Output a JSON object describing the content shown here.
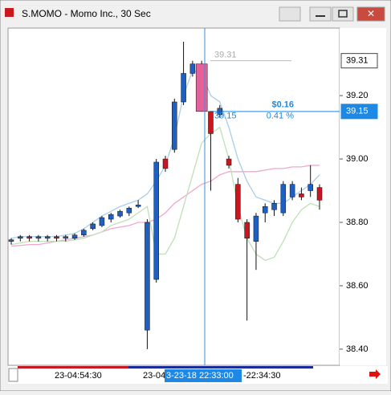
{
  "window_title": "S.MOMO - Momo Inc., 30 Sec",
  "chart_data": {
    "type": "candlestick",
    "up_color": "#1f5fbf",
    "down_color": "#c8171e",
    "highlight_color": "#e8609a",
    "open": [
      38.74,
      38.75,
      38.755,
      38.75,
      38.75,
      38.755,
      38.75,
      38.75,
      38.76,
      38.78,
      38.79,
      38.81,
      38.82,
      38.83,
      38.85,
      38.46,
      38.62,
      39.0,
      39.03,
      39.18,
      39.27,
      39.3,
      39.15,
      39.14,
      39.0,
      38.92,
      38.8,
      38.74,
      38.83,
      38.84,
      38.83,
      38.88,
      38.89,
      38.9,
      38.91
    ],
    "high": [
      38.75,
      38.76,
      38.76,
      38.76,
      38.76,
      38.76,
      38.76,
      38.765,
      38.78,
      38.8,
      38.82,
      38.83,
      38.84,
      38.85,
      38.87,
      38.81,
      39.0,
      39.01,
      39.19,
      39.37,
      39.31,
      39.31,
      39.15,
      39.17,
      39.01,
      38.94,
      38.81,
      38.83,
      38.86,
      38.87,
      38.93,
      38.93,
      38.91,
      38.98,
      38.92
    ],
    "low": [
      38.73,
      38.74,
      38.74,
      38.74,
      38.74,
      38.74,
      38.74,
      38.745,
      38.755,
      38.775,
      38.785,
      38.8,
      38.815,
      38.82,
      38.845,
      38.4,
      38.61,
      38.96,
      39.02,
      39.17,
      39.26,
      39.15,
      38.9,
      39.13,
      38.97,
      38.8,
      38.49,
      38.65,
      38.8,
      38.82,
      38.82,
      38.87,
      38.87,
      38.88,
      38.84
    ],
    "close": [
      38.745,
      38.755,
      38.75,
      38.755,
      38.755,
      38.75,
      38.755,
      38.76,
      38.775,
      38.795,
      38.815,
      38.825,
      38.835,
      38.845,
      38.855,
      38.8,
      38.99,
      38.97,
      39.18,
      39.27,
      39.3,
      39.15,
      39.08,
      39.16,
      38.98,
      38.81,
      38.75,
      38.82,
      38.85,
      38.86,
      38.92,
      38.92,
      38.88,
      38.92,
      38.87
    ],
    "lines": [
      {
        "color": "#f2a6cf",
        "values": [
          38.725,
          38.727,
          38.73,
          38.73,
          38.735,
          38.74,
          38.745,
          38.75,
          38.755,
          38.76,
          38.77,
          38.78,
          38.785,
          38.79,
          38.8,
          38.8,
          38.81,
          38.83,
          38.86,
          38.88,
          38.9,
          38.92,
          38.93,
          38.95,
          38.96,
          38.96,
          38.96,
          38.96,
          38.965,
          38.97,
          38.97,
          38.975,
          38.975,
          38.98,
          38.98
        ]
      },
      {
        "color": "#a9cdea",
        "values": [
          38.75,
          38.755,
          38.755,
          38.755,
          38.755,
          38.755,
          38.76,
          38.765,
          38.78,
          38.8,
          38.82,
          38.835,
          38.85,
          38.86,
          38.87,
          38.89,
          38.93,
          38.98,
          39.07,
          39.2,
          39.28,
          39.27,
          39.2,
          39.18,
          39.1,
          39.0,
          38.93,
          38.88,
          38.87,
          38.86,
          38.86,
          38.88,
          38.9,
          38.92,
          38.95
        ]
      },
      {
        "color": "#bfe0b8",
        "values": [
          38.73,
          38.735,
          38.74,
          38.74,
          38.74,
          38.74,
          38.74,
          38.745,
          38.75,
          38.76,
          38.77,
          38.79,
          38.8,
          38.81,
          38.83,
          38.85,
          38.7,
          38.7,
          38.75,
          38.85,
          38.95,
          39.05,
          39.08,
          39.1,
          39.0,
          38.85,
          38.75,
          38.7,
          38.68,
          38.69,
          38.74,
          38.8,
          38.84,
          38.86,
          38.85
        ]
      }
    ],
    "ylim": [
      38.349,
      39.413
    ],
    "yticks": [
      {
        "value": 39.2,
        "label": "39.20"
      },
      {
        "value": 39.0,
        "label": "39.00"
      },
      {
        "value": 38.8,
        "label": "38.80"
      },
      {
        "value": 38.6,
        "label": "38.60"
      },
      {
        "value": 38.4,
        "label": "38.40"
      }
    ],
    "price_markers": [
      {
        "value": 39.31,
        "label": "39.31"
      },
      {
        "value": 39.15,
        "label": "39.15"
      }
    ],
    "measure": {
      "high": {
        "value": 39.31,
        "label": "39.31"
      },
      "low": {
        "value": 39.15,
        "label": "39.15"
      },
      "change": "$0.16",
      "percent": "0.41 %"
    },
    "x_labels": [
      "23-04:54:30",
      "23-04",
      "3-23-18 22:33:00",
      "-22:34:30"
    ]
  }
}
